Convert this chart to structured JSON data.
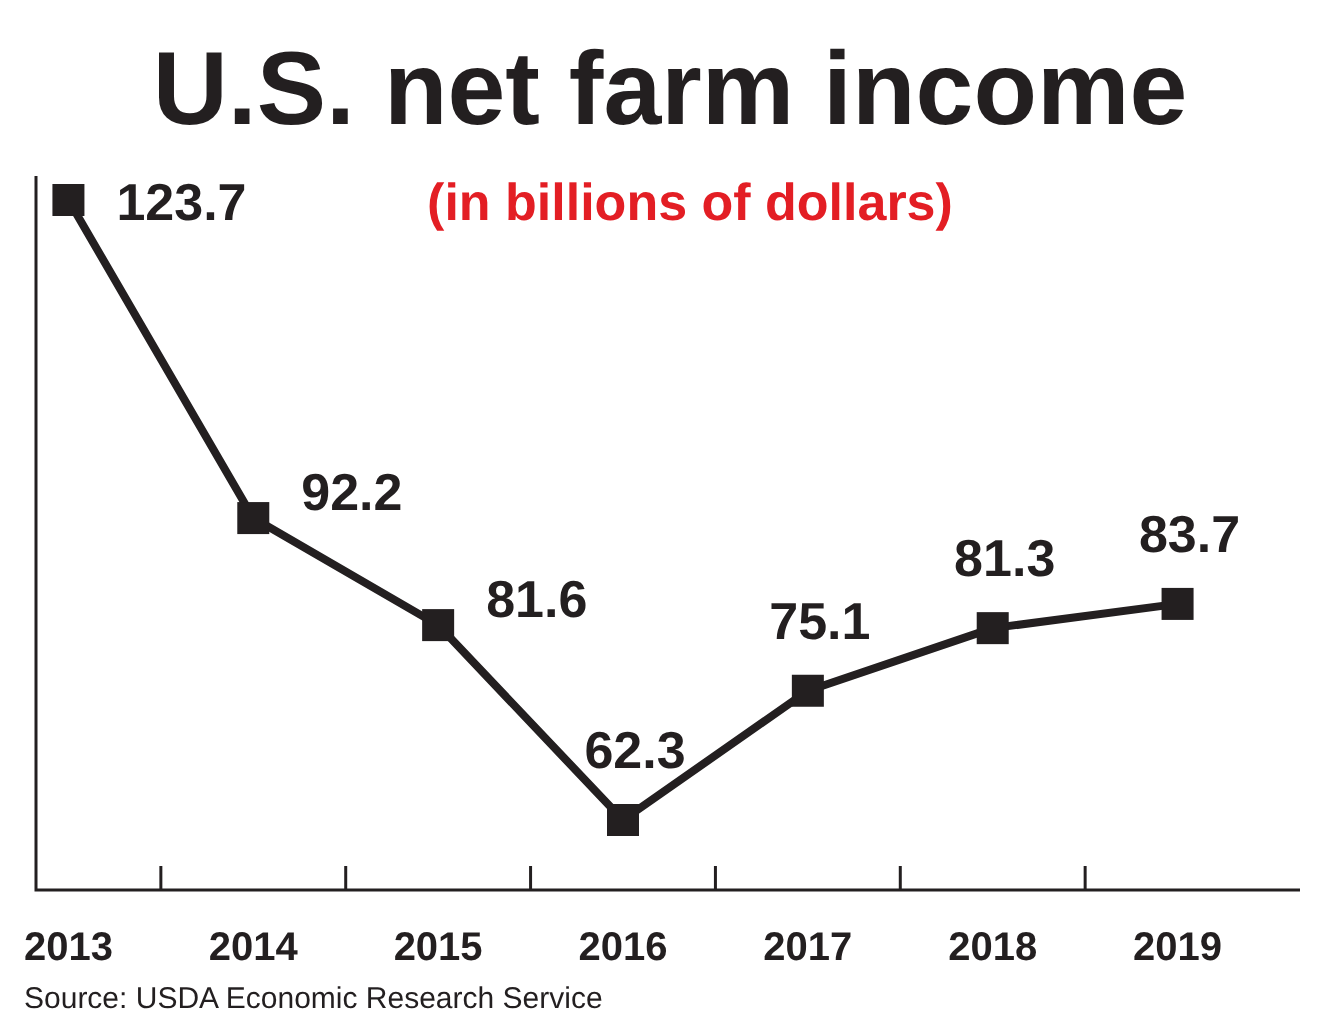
{
  "chart_data": {
    "type": "line",
    "title": "U.S. net farm income",
    "subtitle": "(in billions of dollars)",
    "categories": [
      "2013",
      "2014",
      "2015",
      "2016",
      "2017",
      "2018",
      "2019"
    ],
    "series": [
      {
        "color": "#231f20",
        "values": [
          123.7,
          92.2,
          81.6,
          62.3,
          75.1,
          81.3,
          83.7
        ]
      }
    ],
    "data_labels": true,
    "marker": "square",
    "line_style": "solid",
    "annotations": [
      "Source: USDA Economic Research Service"
    ]
  }
}
